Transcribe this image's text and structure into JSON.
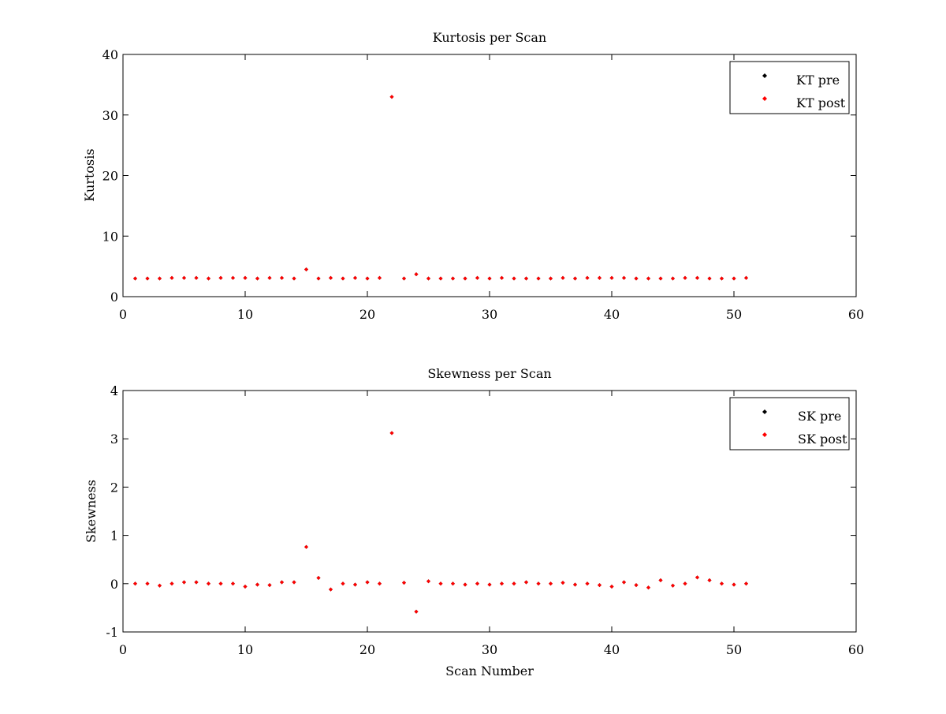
{
  "chart_data": [
    {
      "type": "scatter",
      "title": "Kurtosis per Scan",
      "xlabel": "",
      "ylabel": "Kurtosis",
      "xlim": [
        0,
        60
      ],
      "ylim": [
        0,
        40
      ],
      "xticks": [
        "0",
        "10",
        "20",
        "30",
        "40",
        "50",
        "60"
      ],
      "yticks": [
        "0",
        "10",
        "20",
        "30",
        "40"
      ],
      "grid": false,
      "legend_position": "top-right",
      "x": [
        1,
        2,
        3,
        4,
        5,
        6,
        7,
        8,
        9,
        10,
        11,
        12,
        13,
        14,
        15,
        16,
        17,
        18,
        19,
        20,
        21,
        22,
        23,
        24,
        25,
        26,
        27,
        28,
        29,
        30,
        31,
        32,
        33,
        34,
        35,
        36,
        37,
        38,
        39,
        40,
        41,
        42,
        43,
        44,
        45,
        46,
        47,
        48,
        49,
        50,
        51
      ],
      "series": [
        {
          "name": "KT pre",
          "color": "#000000",
          "values": [
            3.0,
            3.0,
            3.0,
            3.1,
            3.1,
            3.1,
            3.0,
            3.1,
            3.1,
            3.1,
            3.0,
            3.1,
            3.1,
            3.0,
            4.5,
            3.0,
            3.1,
            3.0,
            3.1,
            3.0,
            3.1,
            33.0,
            3.0,
            3.7,
            3.0,
            3.0,
            3.0,
            3.0,
            3.1,
            3.0,
            3.1,
            3.0,
            3.0,
            3.0,
            3.0,
            3.1,
            3.0,
            3.1,
            3.1,
            3.1,
            3.1,
            3.0,
            3.0,
            3.0,
            3.0,
            3.1,
            3.1,
            3.0,
            3.0,
            3.0,
            3.1
          ]
        },
        {
          "name": "KT post",
          "color": "#ff0000",
          "values": [
            3.0,
            3.0,
            3.0,
            3.1,
            3.1,
            3.1,
            3.0,
            3.1,
            3.1,
            3.1,
            3.0,
            3.1,
            3.1,
            3.0,
            4.5,
            3.0,
            3.1,
            3.0,
            3.1,
            3.0,
            3.1,
            33.0,
            3.0,
            3.7,
            3.0,
            3.0,
            3.0,
            3.0,
            3.1,
            3.0,
            3.1,
            3.0,
            3.0,
            3.0,
            3.0,
            3.1,
            3.0,
            3.1,
            3.1,
            3.1,
            3.1,
            3.0,
            3.0,
            3.0,
            3.0,
            3.1,
            3.1,
            3.0,
            3.0,
            3.0,
            3.1
          ]
        }
      ]
    },
    {
      "type": "scatter",
      "title": "Skewness per Scan",
      "xlabel": "Scan Number",
      "ylabel": "Skewness",
      "xlim": [
        0,
        60
      ],
      "ylim": [
        -1,
        4
      ],
      "xticks": [
        "0",
        "10",
        "20",
        "30",
        "40",
        "50",
        "60"
      ],
      "yticks": [
        "-1",
        "0",
        "1",
        "2",
        "3",
        "4"
      ],
      "grid": false,
      "legend_position": "top-right",
      "x": [
        1,
        2,
        3,
        4,
        5,
        6,
        7,
        8,
        9,
        10,
        11,
        12,
        13,
        14,
        15,
        16,
        17,
        18,
        19,
        20,
        21,
        22,
        23,
        24,
        25,
        26,
        27,
        28,
        29,
        30,
        31,
        32,
        33,
        34,
        35,
        36,
        37,
        38,
        39,
        40,
        41,
        42,
        43,
        44,
        45,
        46,
        47,
        48,
        49,
        50,
        51
      ],
      "series": [
        {
          "name": "SK pre",
          "color": "#000000",
          "values": [
            0.0,
            0.0,
            -0.04,
            0.0,
            0.03,
            0.03,
            0.0,
            0.0,
            0.0,
            -0.06,
            -0.02,
            -0.03,
            0.03,
            0.03,
            0.76,
            0.12,
            -0.12,
            0.0,
            -0.02,
            0.03,
            0.0,
            3.12,
            0.02,
            -0.58,
            0.05,
            0.0,
            0.0,
            -0.02,
            0.0,
            -0.02,
            0.0,
            0.0,
            0.03,
            0.0,
            0.0,
            0.02,
            -0.02,
            0.0,
            -0.03,
            -0.06,
            0.03,
            -0.03,
            -0.08,
            0.07,
            -0.04,
            0.0,
            0.13,
            0.07,
            0.0,
            -0.02,
            0.0
          ]
        },
        {
          "name": "SK post",
          "color": "#ff0000",
          "values": [
            0.0,
            0.0,
            -0.04,
            0.0,
            0.03,
            0.03,
            0.0,
            0.0,
            0.0,
            -0.06,
            -0.02,
            -0.03,
            0.03,
            0.03,
            0.76,
            0.12,
            -0.12,
            0.0,
            -0.02,
            0.03,
            0.0,
            3.12,
            0.02,
            -0.58,
            0.05,
            0.0,
            0.0,
            -0.02,
            0.0,
            -0.02,
            0.0,
            0.0,
            0.03,
            0.0,
            0.0,
            0.02,
            -0.02,
            0.0,
            -0.03,
            -0.06,
            0.03,
            -0.03,
            -0.08,
            0.07,
            -0.04,
            0.0,
            0.13,
            0.07,
            0.0,
            -0.02,
            0.0
          ]
        }
      ]
    }
  ]
}
